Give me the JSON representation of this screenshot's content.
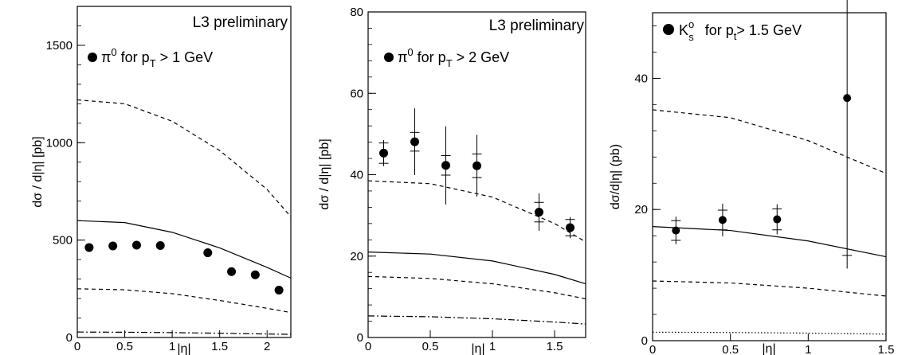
{
  "chart_data": [
    {
      "type": "scatter",
      "title": "L3 preliminary",
      "legend": {
        "marker": "filled-circle",
        "text": "π⁰ for pT > 1 GeV",
        "placement": "top-left"
      },
      "xlabel": "|η|",
      "ylabel": "dσ / d|η| [pb]",
      "xlim": [
        0,
        2.25
      ],
      "ylim": [
        0,
        1700
      ],
      "xticks": [
        0,
        0.5,
        1,
        1.5,
        2
      ],
      "xtick_labels": [
        "0",
        "0.5",
        "1",
        "1.5",
        "2"
      ],
      "yticks": [
        0,
        500,
        1000,
        1500
      ],
      "ytick_labels": [
        "0",
        "500",
        "1000",
        "1500"
      ],
      "series": [
        {
          "kind": "points",
          "x": [
            0.125,
            0.375,
            0.625,
            0.875,
            1.375,
            1.625,
            1.875,
            2.125
          ],
          "y": [
            462,
            470,
            474,
            472,
            435,
            338,
            322,
            243
          ]
        },
        {
          "kind": "curve",
          "style": "dashed",
          "x": [
            0,
            0.5,
            1,
            1.5,
            2,
            2.25
          ],
          "y": [
            1220,
            1200,
            1110,
            960,
            760,
            620
          ]
        },
        {
          "kind": "curve",
          "style": "solid",
          "x": [
            0,
            0.5,
            1,
            1.5,
            2,
            2.25
          ],
          "y": [
            600,
            590,
            540,
            460,
            360,
            305
          ]
        },
        {
          "kind": "curve",
          "style": "dashed",
          "x": [
            0,
            0.5,
            1,
            1.5,
            2,
            2.25
          ],
          "y": [
            250,
            245,
            225,
            190,
            150,
            128
          ]
        },
        {
          "kind": "curve",
          "style": "dashdot",
          "x": [
            0,
            0.5,
            1,
            1.5,
            2,
            2.25
          ],
          "y": [
            28,
            27,
            25,
            22,
            18,
            16
          ]
        }
      ]
    },
    {
      "type": "scatter",
      "title": "L3 preliminary",
      "legend": {
        "marker": "filled-circle",
        "text": "π⁰ for pT > 2 GeV",
        "placement": "top-left"
      },
      "xlabel": "|η|",
      "ylabel": "dσ / d|η| [pb]",
      "xlim": [
        0,
        1.75
      ],
      "ylim": [
        0,
        80
      ],
      "xticks": [
        0,
        0.5,
        1,
        1.5
      ],
      "xtick_labels": [
        "0",
        "0.5",
        "1",
        "1.5"
      ],
      "yticks": [
        0,
        20,
        40,
        60,
        80
      ],
      "ytick_labels": [
        "0",
        "20",
        "40",
        "60",
        "80"
      ],
      "series": [
        {
          "kind": "points",
          "x": [
            0.125,
            0.375,
            0.625,
            0.875,
            1.375,
            1.625
          ],
          "y": [
            45.3,
            48.1,
            42.3,
            42.2,
            30.8,
            27.0
          ],
          "err_total": [
            3.2,
            8.2,
            9.6,
            7.6,
            4.6,
            2.6
          ],
          "err_stat": [
            2.5,
            2.3,
            2.4,
            2.9,
            2.4,
            2.0
          ]
        },
        {
          "kind": "curve",
          "style": "dashed",
          "x": [
            0,
            0.5,
            1,
            1.5,
            1.75
          ],
          "y": [
            38.5,
            37.8,
            34.5,
            28.0,
            23.5
          ]
        },
        {
          "kind": "curve",
          "style": "solid",
          "x": [
            0,
            0.5,
            1,
            1.5,
            1.75
          ],
          "y": [
            21.0,
            20.5,
            18.8,
            15.5,
            13.2
          ]
        },
        {
          "kind": "curve",
          "style": "dashed",
          "x": [
            0,
            0.5,
            1,
            1.5,
            1.75
          ],
          "y": [
            15.0,
            14.5,
            13.2,
            11.0,
            9.5
          ]
        },
        {
          "kind": "curve",
          "style": "dashdot",
          "x": [
            0,
            0.5,
            1,
            1.5,
            1.75
          ],
          "y": [
            5.3,
            5.1,
            4.6,
            3.8,
            3.3
          ]
        }
      ]
    },
    {
      "type": "scatter",
      "title": "",
      "legend": {
        "marker": "filled-circle",
        "text": "K⁰s for pt > 1.5 GeV",
        "placement": "top-left"
      },
      "xlabel": "|η|",
      "ylabel": "dσ/d|η| (pb)",
      "xlim": [
        0,
        1.5
      ],
      "ylim": [
        0,
        50
      ],
      "xticks": [
        0,
        0.5,
        1,
        1.5
      ],
      "xtick_labels": [
        "0",
        "0.5",
        "1",
        "1.5"
      ],
      "yticks": [
        0,
        20,
        40
      ],
      "ytick_labels": [
        "0",
        "20",
        "40"
      ],
      "series": [
        {
          "kind": "points",
          "x": [
            0.15,
            0.45,
            0.8,
            1.25
          ],
          "y": [
            16.8,
            18.4,
            18.5,
            37.0
          ],
          "err_total": [
            2.1,
            2.5,
            2.3,
            26.0
          ],
          "err_stat": [
            1.5,
            1.5,
            1.6,
            24.0
          ]
        },
        {
          "kind": "curve",
          "style": "dashed",
          "x": [
            0,
            0.5,
            1,
            1.5
          ],
          "y": [
            35.2,
            34.0,
            30.5,
            25.5
          ]
        },
        {
          "kind": "curve",
          "style": "solid",
          "x": [
            0,
            0.5,
            1,
            1.5
          ],
          "y": [
            17.4,
            16.8,
            15.2,
            12.8
          ]
        },
        {
          "kind": "curve",
          "style": "dashed",
          "x": [
            0,
            0.5,
            1,
            1.5
          ],
          "y": [
            9.1,
            8.8,
            8.0,
            6.8
          ]
        },
        {
          "kind": "curve",
          "style": "dotted",
          "x": [
            0,
            0.5,
            1,
            1.5
          ],
          "y": [
            1.3,
            1.25,
            1.15,
            1.0
          ]
        }
      ]
    }
  ]
}
